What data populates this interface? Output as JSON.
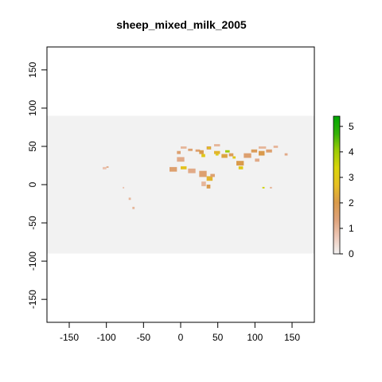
{
  "chart_data": {
    "type": "heatmap",
    "title": "sheep_mixed_milk_2005",
    "xlabel": "",
    "ylabel": "",
    "xlim": [
      -180,
      180
    ],
    "ylim": [
      -180,
      180
    ],
    "x_ticks": [
      -150,
      -100,
      -50,
      0,
      50,
      100,
      150
    ],
    "y_ticks": [
      -150,
      -100,
      -50,
      0,
      50,
      100,
      150
    ],
    "raster_extent": {
      "x": [
        -180,
        180
      ],
      "y": [
        -90,
        90
      ]
    },
    "raster_background_value": 0,
    "legend": {
      "placement": "right",
      "min": 0,
      "max": 5.4,
      "ticks": [
        0,
        1,
        2,
        3,
        4,
        5
      ],
      "colors": [
        "#f2f2f2",
        "#edc8b8",
        "#dea27a",
        "#d99a4a",
        "#e6bf22",
        "#d9d40a",
        "#9ccc04",
        "#33b207",
        "#00a600"
      ]
    },
    "cells": [
      {
        "x": 35,
        "y": 46,
        "w": 6,
        "h": 4,
        "value": 2.0
      },
      {
        "x": 36,
        "y": 47,
        "w": 4,
        "h": 2,
        "value": 3.0
      },
      {
        "x": 45,
        "y": 40,
        "w": 8,
        "h": 4,
        "value": 2.5
      },
      {
        "x": 47,
        "y": 38,
        "w": 4,
        "h": 2,
        "value": 3.2
      },
      {
        "x": 55,
        "y": 35,
        "w": 8,
        "h": 5,
        "value": 2.2
      },
      {
        "x": 65,
        "y": 37,
        "w": 6,
        "h": 4,
        "value": 1.8
      },
      {
        "x": 70,
        "y": 34,
        "w": 4,
        "h": 3,
        "value": 3.0
      },
      {
        "x": 20,
        "y": 43,
        "w": 6,
        "h": 3,
        "value": 1.5
      },
      {
        "x": 25,
        "y": 40,
        "w": 6,
        "h": 5,
        "value": 2.0
      },
      {
        "x": 28,
        "y": 36,
        "w": 5,
        "h": 4,
        "value": 3.0
      },
      {
        "x": 10,
        "y": 44,
        "w": 6,
        "h": 3,
        "value": 1.5
      },
      {
        "x": 0,
        "y": 47,
        "w": 8,
        "h": 3,
        "value": 1.0
      },
      {
        "x": -5,
        "y": 40,
        "w": 5,
        "h": 4,
        "value": 1.5
      },
      {
        "x": -5,
        "y": 30,
        "w": 10,
        "h": 6,
        "value": 1.2
      },
      {
        "x": 0,
        "y": 20,
        "w": 8,
        "h": 4,
        "value": 2.8
      },
      {
        "x": -15,
        "y": 17,
        "w": 10,
        "h": 6,
        "value": 1.5
      },
      {
        "x": 10,
        "y": 15,
        "w": 10,
        "h": 6,
        "value": 1.2
      },
      {
        "x": 25,
        "y": 10,
        "w": 10,
        "h": 8,
        "value": 1.5
      },
      {
        "x": 35,
        "y": 5,
        "w": 8,
        "h": 6,
        "value": 2.5
      },
      {
        "x": 40,
        "y": 10,
        "w": 6,
        "h": 4,
        "value": 1.5
      },
      {
        "x": 28,
        "y": -2,
        "w": 6,
        "h": 6,
        "value": 1.0
      },
      {
        "x": 35,
        "y": -5,
        "w": 5,
        "h": 5,
        "value": 2.0
      },
      {
        "x": 75,
        "y": 25,
        "w": 10,
        "h": 6,
        "value": 2.0
      },
      {
        "x": 78,
        "y": 20,
        "w": 6,
        "h": 4,
        "value": 3.0
      },
      {
        "x": 85,
        "y": 35,
        "w": 10,
        "h": 6,
        "value": 1.5
      },
      {
        "x": 95,
        "y": 42,
        "w": 8,
        "h": 4,
        "value": 1.8
      },
      {
        "x": 105,
        "y": 38,
        "w": 8,
        "h": 6,
        "value": 2.0
      },
      {
        "x": 115,
        "y": 42,
        "w": 8,
        "h": 4,
        "value": 1.5
      },
      {
        "x": 125,
        "y": 48,
        "w": 6,
        "h": 3,
        "value": 1.0
      },
      {
        "x": 100,
        "y": 30,
        "w": 6,
        "h": 4,
        "value": 1.2
      },
      {
        "x": 105,
        "y": 47,
        "w": 10,
        "h": 3,
        "value": 1.0
      },
      {
        "x": 140,
        "y": 38,
        "w": 4,
        "h": 3,
        "value": 1.2
      },
      {
        "x": 110,
        "y": -5,
        "w": 3,
        "h": 2,
        "value": 3.5
      },
      {
        "x": 120,
        "y": -5,
        "w": 3,
        "h": 2,
        "value": 1.0
      },
      {
        "x": -105,
        "y": 20,
        "w": 5,
        "h": 3,
        "value": 0.8
      },
      {
        "x": -100,
        "y": 22,
        "w": 3,
        "h": 2,
        "value": 1.2
      },
      {
        "x": -70,
        "y": -20,
        "w": 3,
        "h": 3,
        "value": 1.0
      },
      {
        "x": -65,
        "y": -32,
        "w": 3,
        "h": 3,
        "value": 1.0
      },
      {
        "x": -78,
        "y": -5,
        "w": 2,
        "h": 2,
        "value": 0.8
      },
      {
        "x": 60,
        "y": 42,
        "w": 6,
        "h": 3,
        "value": 4.0
      },
      {
        "x": 45,
        "y": 50,
        "w": 8,
        "h": 3,
        "value": 1.0
      }
    ]
  }
}
